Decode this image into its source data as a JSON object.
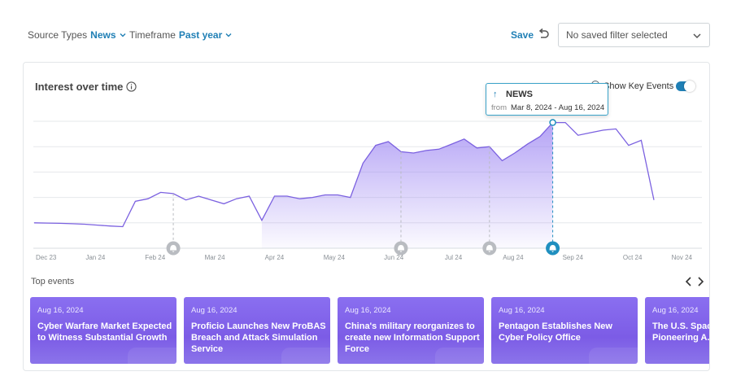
{
  "filters": {
    "source_types_label": "Source Types",
    "source_types_value": "News",
    "timeframe_label": "Timeframe",
    "timeframe_value": "Past year"
  },
  "toolbar": {
    "save_label": "Save",
    "saved_filter_value": "No saved filter selected"
  },
  "card": {
    "title": "Interest over time",
    "key_events_label": "Show Key Events",
    "key_events_on": true
  },
  "tooltip": {
    "label": "NEWS",
    "from_label": "from",
    "range": "Mar 8, 2024 - Aug 16, 2024"
  },
  "chart_data": {
    "type": "area",
    "title": "Interest over time",
    "x_tick_labels": [
      "Dec 23",
      "Jan 24",
      "Feb 24",
      "Mar 24",
      "Apr 24",
      "May 24",
      "Jun 24",
      "Jul 24",
      "Aug 24",
      "Sep 24",
      "Oct 24",
      "Nov 24"
    ],
    "values": [
      20,
      19.8,
      19.6,
      19.3,
      18.9,
      18.2,
      17.5,
      17,
      37,
      39,
      44,
      43,
      38,
      41,
      38,
      35,
      39,
      41,
      22,
      41,
      41,
      39,
      40,
      42,
      42,
      40,
      67,
      81,
      84,
      76,
      75,
      77,
      78,
      82,
      86,
      79,
      80,
      69,
      75,
      82,
      88,
      99,
      99,
      89,
      91,
      93,
      94,
      81,
      85,
      38
    ],
    "highlight_start_index": 18,
    "highlight_end_index": 41,
    "highlight_point_index": 41,
    "event_marker_indices": [
      11,
      29,
      36,
      41
    ],
    "active_marker_index": 41,
    "ylim": [
      0,
      100
    ],
    "grid": true,
    "accent_color": "#7b61e0",
    "marker_color": "#b9bcc1",
    "active_marker_color": "#1f8fbf"
  },
  "top_events": {
    "heading": "Top events",
    "items": [
      {
        "date": "Aug 16, 2024",
        "title": "Cyber Warfare Market Expected to Witness Substantial Growth"
      },
      {
        "date": "Aug 16, 2024",
        "title": "Proficio Launches New ProBAS Breach and Attack Simulation Service"
      },
      {
        "date": "Aug 16, 2024",
        "title": "China's military reorganizes to create new Information Support Force"
      },
      {
        "date": "Aug 16, 2024",
        "title": "Pentagon Establishes New Cyber Policy Office"
      },
      {
        "date": "Aug 16, 2024",
        "title": "The U.S. Space Force Pioneering A... Dominance I..."
      }
    ]
  }
}
